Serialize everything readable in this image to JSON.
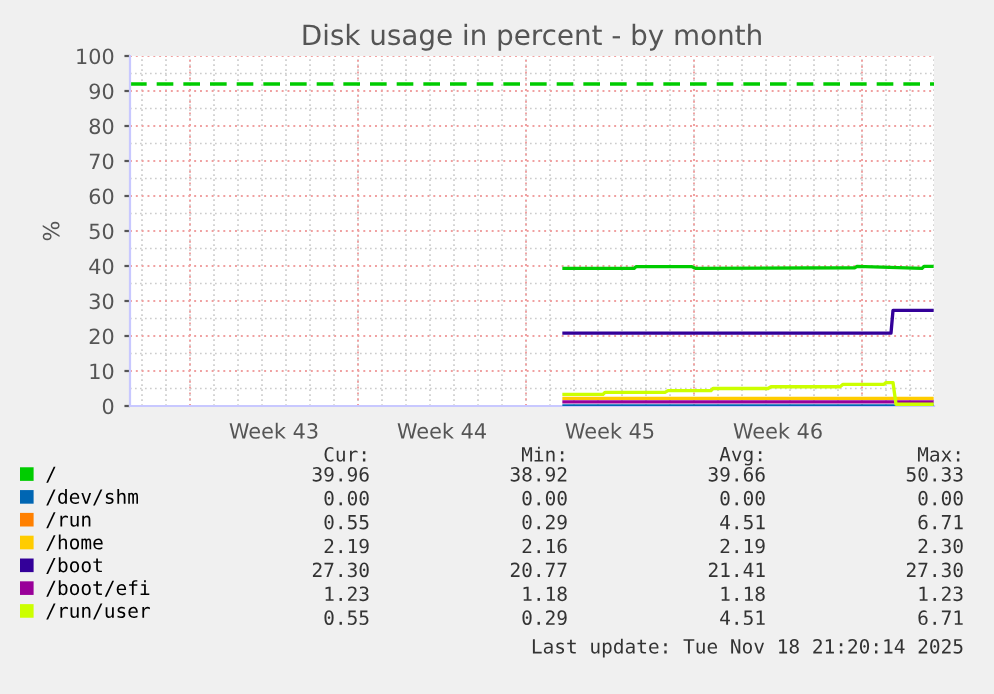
{
  "chart_data": {
    "type": "line",
    "title": "Disk usage in percent - by month",
    "ylabel": "%",
    "xlim": [
      "2025-10-17T12:00",
      "2025-11-20T00:00"
    ],
    "ylim": [
      0,
      100
    ],
    "xticks": [
      {
        "value": "2025-10-20",
        "label": null
      },
      {
        "value": "2025-10-23T12:00",
        "label": "Week 43"
      },
      {
        "value": "2025-10-27",
        "label": null
      },
      {
        "value": "2025-10-30T12:00",
        "label": "Week 44"
      },
      {
        "value": "2025-11-03",
        "label": null
      },
      {
        "value": "2025-11-06T12:00",
        "label": "Week 45"
      },
      {
        "value": "2025-11-10",
        "label": null
      },
      {
        "value": "2025-11-13T12:00",
        "label": "Week 46"
      },
      {
        "value": "2025-11-17",
        "label": null
      }
    ],
    "yticks": [
      0,
      10,
      20,
      30,
      40,
      50,
      60,
      70,
      80,
      90,
      100
    ],
    "grid": true,
    "legend": "bottom",
    "line_style": "solid",
    "marker": "none",
    "series": [
      {
        "name": "/",
        "color": "#00cc00",
        "x": [
          "2025-11-04T14:00",
          "2025-11-07T12:00",
          "2025-11-07T14:00",
          "2025-11-09T22:00",
          "2025-11-10T02:00",
          "2025-11-16T17:00",
          "2025-11-16T19:00",
          "2025-11-19T12:00",
          "2025-11-19T14:00",
          "2025-11-19T22:00"
        ],
        "values": [
          39.3,
          39.3,
          39.8,
          39.8,
          39.3,
          39.5,
          39.9,
          39.3,
          39.9,
          39.9
        ]
      },
      {
        "name": "/dev/shm",
        "color": "#0066b3",
        "x": [
          "2025-11-04T14:00",
          "2025-11-19T22:00"
        ],
        "values": [
          0,
          0
        ]
      },
      {
        "name": "/run",
        "color": "#ff8000"
      },
      {
        "name": "/home",
        "color": "#ffcc00",
        "x": [
          "2025-11-04T14:00",
          "2025-11-19T22:00"
        ],
        "values": [
          2.2,
          2.2
        ]
      },
      {
        "name": "/boot",
        "color": "#330099",
        "x": [
          "2025-11-04T14:00",
          "2025-11-18T05:00",
          "2025-11-18T07:00",
          "2025-11-19T22:00"
        ],
        "values": [
          20.8,
          20.8,
          27.3,
          27.3
        ]
      },
      {
        "name": "/boot/efi",
        "color": "#990099",
        "x": [
          "2025-11-04T14:00",
          "2025-11-19T22:00"
        ],
        "values": [
          1.2,
          1.2
        ]
      },
      {
        "name": "/run/user",
        "color": "#ccff00",
        "x": [
          "2025-11-04T14:00",
          "2025-11-06T05:00",
          "2025-11-06T07:00",
          "2025-11-08T19:00",
          "2025-11-08T22:00",
          "2025-11-10T17:00",
          "2025-11-10T19:00",
          "2025-11-13T02:00",
          "2025-11-13T05:00",
          "2025-11-16T02:00",
          "2025-11-16T05:00",
          "2025-11-17T22:00",
          "2025-11-18T00:00",
          "2025-11-18T07:00",
          "2025-11-18T10:00",
          "2025-11-19T22:00"
        ],
        "values": [
          3.3,
          3.3,
          3.9,
          3.9,
          4.4,
          4.4,
          5.0,
          5.0,
          5.5,
          5.5,
          6.2,
          6.2,
          6.7,
          6.7,
          0.5,
          0.5
        ]
      }
    ],
    "ref_lines": [
      {
        "axis": "y",
        "value": 92,
        "color": "#00cc00",
        "line_style": "dashed"
      }
    ],
    "annotations": [
      "Cur:",
      "Min:",
      "Avg:",
      "Max:",
      "39.96",
      "38.92",
      "39.66",
      "50.33",
      "0.00",
      "0.00",
      "0.00",
      "0.00",
      "0.55",
      "0.29",
      "4.51",
      "6.71",
      "2.19",
      "2.16",
      "2.19",
      "2.30",
      "27.30",
      "20.77",
      "21.41",
      "27.30",
      "1.23",
      "1.18",
      "1.18",
      "1.23",
      "0.55",
      "0.29",
      "4.51",
      "6.71",
      "Last update: Tue Nov 18 21:20:14 2025"
    ]
  }
}
